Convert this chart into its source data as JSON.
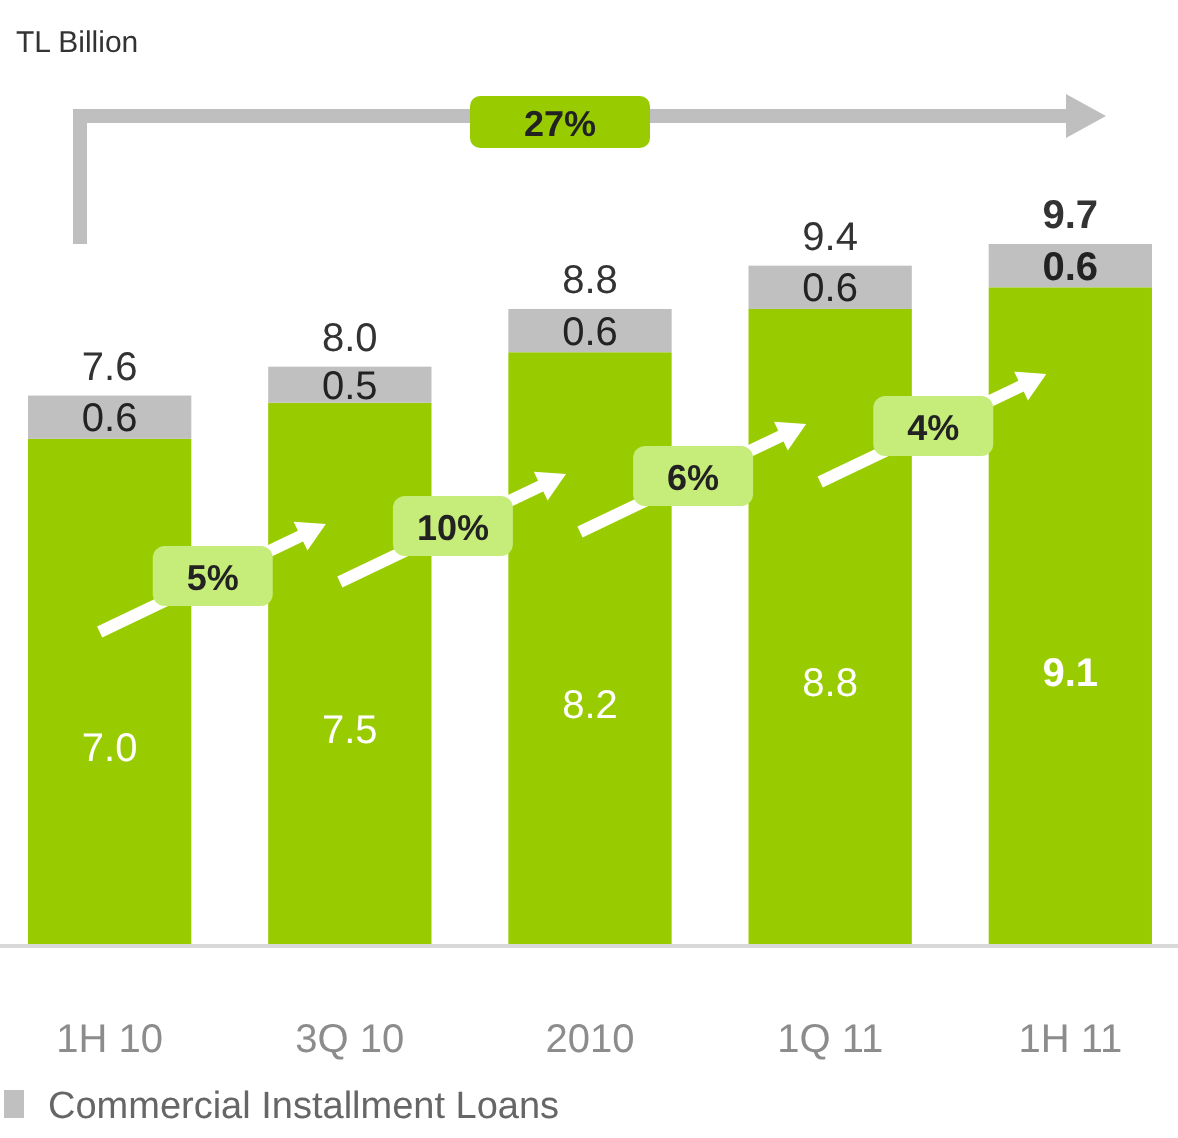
{
  "chart_data": {
    "type": "bar",
    "stacked": true,
    "categories": [
      "1H 10",
      "3Q 10",
      "2010",
      "1Q 11",
      "1H 11"
    ],
    "series": [
      {
        "color": "#99cc00",
        "values": [
          7.0,
          7.5,
          8.2,
          8.8,
          9.1
        ],
        "value_labels": [
          "7.0",
          "7.5",
          "8.2",
          "8.8",
          "9.1"
        ]
      },
      {
        "name": "Commercial Installment Loans",
        "color": "#c0c0c0",
        "values": [
          0.6,
          0.5,
          0.6,
          0.6,
          0.6
        ],
        "value_labels": [
          "0.6",
          "0.5",
          "0.6",
          "0.6",
          "0.6"
        ]
      }
    ],
    "totals": [
      "7.6",
      "8.0",
      "8.8",
      "9.4",
      "9.7"
    ],
    "legend": "bottom",
    "annotations": [
      "TL Billion",
      "27%",
      "5%",
      "10%",
      "6%",
      "4%"
    ]
  }
}
